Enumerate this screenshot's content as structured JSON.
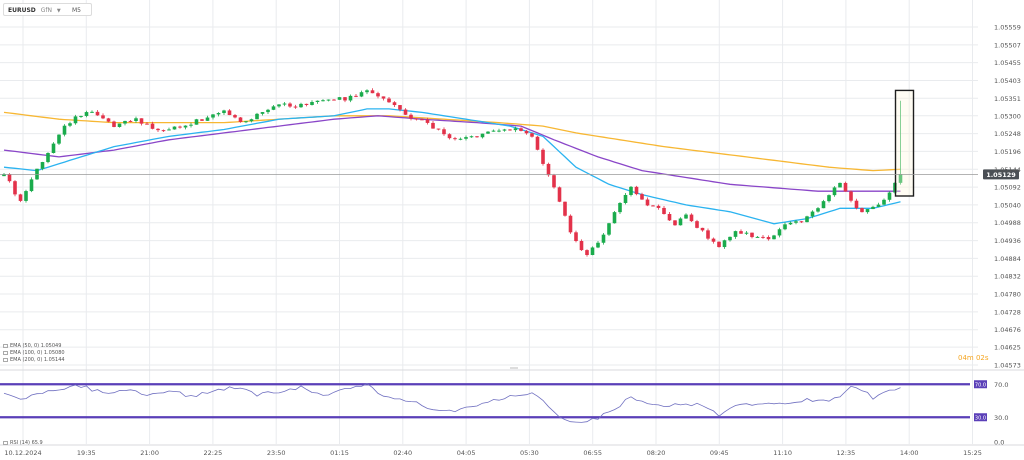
{
  "symbol": {
    "name": "EURUSD",
    "sub": "GfN",
    "timeframe": "M5"
  },
  "timer": "04m 02s",
  "price_tag": "1.05129",
  "colors": {
    "bull": "#1aab4c",
    "bear": "#e3324a",
    "ema50": "#2bb3f0",
    "ema100": "#8a46c8",
    "ema200": "#f7b733",
    "rsi_line": "#6f6fc0",
    "rsi_level": "#5a3fb8",
    "current_line": "#9a9a9a",
    "highlight": "#1e1e1e",
    "highlight_fill": "#fff7dc",
    "timer": "#f5a623",
    "grid": "#e9ebee",
    "axis_text": "#555555"
  },
  "legend": {
    "ema50": "EMA (50, 0) 1.05049",
    "ema100": "EMA (100, 0) 1.05080",
    "ema200": "EMA (200, 0) 1.05144",
    "rsi": "RSI (14) 65.9"
  },
  "chart_data": [
    {
      "type": "candlestick",
      "x_tick_labels": [
        "10.12.2024",
        "19:35",
        "21:00",
        "22:25",
        "23:50",
        "01:15",
        "02:40",
        "04:05",
        "05:30",
        "06:55",
        "08:20",
        "09:45",
        "11:10",
        "12:35",
        "14:00",
        "15:25"
      ],
      "y_tick_labels": [
        "1.05559",
        "1.05507",
        "1.05455",
        "1.05403",
        "1.05351",
        "1.05300",
        "1.05248",
        "1.05196",
        "1.05144",
        "1.05092",
        "1.05040",
        "1.04988",
        "1.04936",
        "1.04884",
        "1.04832",
        "1.04780",
        "1.04728",
        "1.04676",
        "1.04625",
        "1.04573"
      ],
      "ylim": [
        1.04573,
        1.05559
      ],
      "current_price": 1.05129,
      "series": [
        {
          "name": "EMA (50, 0)",
          "last": 1.05049
        },
        {
          "name": "EMA (100, 0)",
          "last": 1.0508
        },
        {
          "name": "EMA (200, 0)",
          "last": 1.05144
        }
      ],
      "anchors": {
        "close": [
          [
            0,
            1.0513
          ],
          [
            3,
            1.0505
          ],
          [
            6,
            1.0514
          ],
          [
            10,
            1.0525
          ],
          [
            13,
            1.053
          ],
          [
            16,
            1.0531
          ],
          [
            20,
            1.0527
          ],
          [
            24,
            1.0529
          ],
          [
            28,
            1.0526
          ],
          [
            32,
            1.0527
          ],
          [
            36,
            1.0529
          ],
          [
            40,
            1.0531
          ],
          [
            43,
            1.0528
          ],
          [
            46,
            1.053
          ],
          [
            50,
            1.0533
          ],
          [
            54,
            1.0533
          ],
          [
            58,
            1.0535
          ],
          [
            62,
            1.0535
          ],
          [
            66,
            1.0537
          ],
          [
            68,
            1.0536
          ],
          [
            70,
            1.0534
          ],
          [
            73,
            1.053
          ],
          [
            77,
            1.0528
          ],
          [
            81,
            1.0523
          ],
          [
            85,
            1.0524
          ],
          [
            88,
            1.0525
          ],
          [
            91,
            1.0526
          ],
          [
            94,
            1.0526
          ],
          [
            96,
            1.0524
          ],
          [
            98,
            1.0516
          ],
          [
            100,
            1.0509
          ],
          [
            103,
            1.0496
          ],
          [
            106,
            1.0489
          ],
          [
            109,
            1.0495
          ],
          [
            112,
            1.0505
          ],
          [
            114,
            1.0509
          ],
          [
            116,
            1.0505
          ],
          [
            119,
            1.0503
          ],
          [
            122,
            1.0498
          ],
          [
            124,
            1.0501
          ],
          [
            127,
            1.0496
          ],
          [
            130,
            1.0492
          ],
          [
            133,
            1.0496
          ],
          [
            136,
            1.0495
          ],
          [
            139,
            1.0494
          ],
          [
            142,
            1.0498
          ],
          [
            145,
            1.0499
          ],
          [
            148,
            1.0503
          ],
          [
            150,
            1.0507
          ],
          [
            152,
            1.0511
          ],
          [
            154,
            1.0505
          ],
          [
            156,
            1.0502
          ],
          [
            158,
            1.0503
          ],
          [
            160,
            1.0506
          ],
          [
            162,
            1.051
          ],
          [
            163,
            1.05129
          ]
        ],
        "ema50": [
          [
            0,
            1.0515
          ],
          [
            6,
            1.0514
          ],
          [
            12,
            1.0517
          ],
          [
            20,
            1.0521
          ],
          [
            30,
            1.0524
          ],
          [
            40,
            1.0526
          ],
          [
            50,
            1.0529
          ],
          [
            60,
            1.053
          ],
          [
            66,
            1.0532
          ],
          [
            70,
            1.0532
          ],
          [
            76,
            1.0531
          ],
          [
            84,
            1.0529
          ],
          [
            92,
            1.0527
          ],
          [
            98,
            1.0524
          ],
          [
            104,
            1.0515
          ],
          [
            110,
            1.051
          ],
          [
            116,
            1.0507
          ],
          [
            124,
            1.0504
          ],
          [
            132,
            1.0502
          ],
          [
            140,
            1.04985
          ],
          [
            146,
            1.05
          ],
          [
            152,
            1.0503
          ],
          [
            158,
            1.0503
          ],
          [
            163,
            1.05049
          ]
        ],
        "ema100": [
          [
            0,
            1.052
          ],
          [
            10,
            1.0518
          ],
          [
            20,
            1.052
          ],
          [
            30,
            1.0523
          ],
          [
            40,
            1.0525
          ],
          [
            50,
            1.0527
          ],
          [
            60,
            1.0529
          ],
          [
            68,
            1.053
          ],
          [
            76,
            1.0529
          ],
          [
            86,
            1.0528
          ],
          [
            94,
            1.0527
          ],
          [
            100,
            1.0523
          ],
          [
            108,
            1.0518
          ],
          [
            116,
            1.0514
          ],
          [
            124,
            1.0512
          ],
          [
            132,
            1.051
          ],
          [
            140,
            1.0509
          ],
          [
            148,
            1.0508
          ],
          [
            154,
            1.0508
          ],
          [
            158,
            1.0508
          ],
          [
            163,
            1.0508
          ]
        ],
        "ema200": [
          [
            0,
            1.0531
          ],
          [
            10,
            1.0529
          ],
          [
            20,
            1.0528
          ],
          [
            30,
            1.0528
          ],
          [
            40,
            1.0528
          ],
          [
            50,
            1.0529
          ],
          [
            60,
            1.053
          ],
          [
            70,
            1.053
          ],
          [
            80,
            1.0529
          ],
          [
            90,
            1.0528
          ],
          [
            98,
            1.0527
          ],
          [
            104,
            1.0525
          ],
          [
            112,
            1.0523
          ],
          [
            120,
            1.0521
          ],
          [
            130,
            1.0519
          ],
          [
            140,
            1.0517
          ],
          [
            150,
            1.0515
          ],
          [
            158,
            1.0514
          ],
          [
            163,
            1.05144
          ]
        ]
      },
      "highlight_box": {
        "from": 1.05066,
        "to": 1.05374
      }
    },
    {
      "type": "line",
      "title": "RSI (14)",
      "y_tick_labels": [
        "70.0",
        "30.0",
        "0.0"
      ],
      "ylim": [
        0,
        80
      ],
      "levels": [
        70,
        30
      ],
      "last": 65.9,
      "anchors": [
        [
          0,
          60
        ],
        [
          4,
          52
        ],
        [
          8,
          63
        ],
        [
          14,
          68
        ],
        [
          18,
          59
        ],
        [
          22,
          64
        ],
        [
          26,
          57
        ],
        [
          30,
          62
        ],
        [
          34,
          55
        ],
        [
          38,
          63
        ],
        [
          42,
          66
        ],
        [
          46,
          58
        ],
        [
          50,
          60
        ],
        [
          54,
          67
        ],
        [
          58,
          55
        ],
        [
          62,
          64
        ],
        [
          66,
          69
        ],
        [
          70,
          52
        ],
        [
          74,
          49
        ],
        [
          78,
          40
        ],
        [
          82,
          37
        ],
        [
          86,
          45
        ],
        [
          90,
          52
        ],
        [
          94,
          57
        ],
        [
          97,
          58
        ],
        [
          100,
          35
        ],
        [
          104,
          22
        ],
        [
          106,
          24
        ],
        [
          110,
          35
        ],
        [
          114,
          55
        ],
        [
          118,
          47
        ],
        [
          122,
          44
        ],
        [
          126,
          47
        ],
        [
          130,
          33
        ],
        [
          134,
          46
        ],
        [
          138,
          48
        ],
        [
          142,
          46
        ],
        [
          146,
          52
        ],
        [
          150,
          50
        ],
        [
          152,
          54
        ],
        [
          154,
          67
        ],
        [
          156,
          64
        ],
        [
          158,
          53
        ],
        [
          160,
          58
        ],
        [
          162,
          63
        ],
        [
          163,
          65.9
        ]
      ]
    }
  ]
}
